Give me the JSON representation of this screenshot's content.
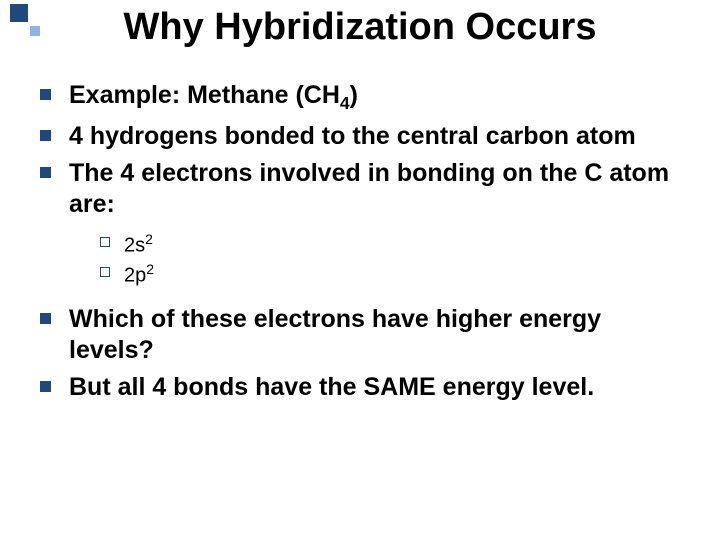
{
  "slide": {
    "background_color": "#ffffff",
    "title": {
      "text": "Why Hybridization Occurs",
      "font_size": 38,
      "font_weight": "bold",
      "color": "#000000"
    },
    "decoration": {
      "big_square_color": "#1f497d",
      "small_square_color": "#8eb4e3"
    },
    "bullets_lvl1": {
      "marker_color": "#1f497d",
      "font_size": 25,
      "font_weight": "bold",
      "color": "#000000",
      "items": [
        {
          "pre": "Example: Methane (CH",
          "sub": "4",
          "post": ")"
        },
        {
          "pre": "4 hydrogens bonded to the central carbon atom",
          "sub": "",
          "post": ""
        },
        {
          "pre": "The 4 electrons involved in bonding on the C atom are:",
          "sub": "",
          "post": ""
        }
      ],
      "items_after": [
        {
          "pre": "Which of these electrons have higher energy levels?",
          "sub": "",
          "post": ""
        },
        {
          "pre": "But all 4 bonds have the SAME energy level.",
          "sub": "",
          "post": ""
        }
      ]
    },
    "bullets_lvl2": {
      "marker_border_color": "#1f497d",
      "font_size": 20,
      "font_weight": "normal",
      "color": "#000000",
      "items": [
        {
          "base": "2s",
          "sup": "2"
        },
        {
          "base": "2p",
          "sup": "2"
        }
      ]
    }
  }
}
